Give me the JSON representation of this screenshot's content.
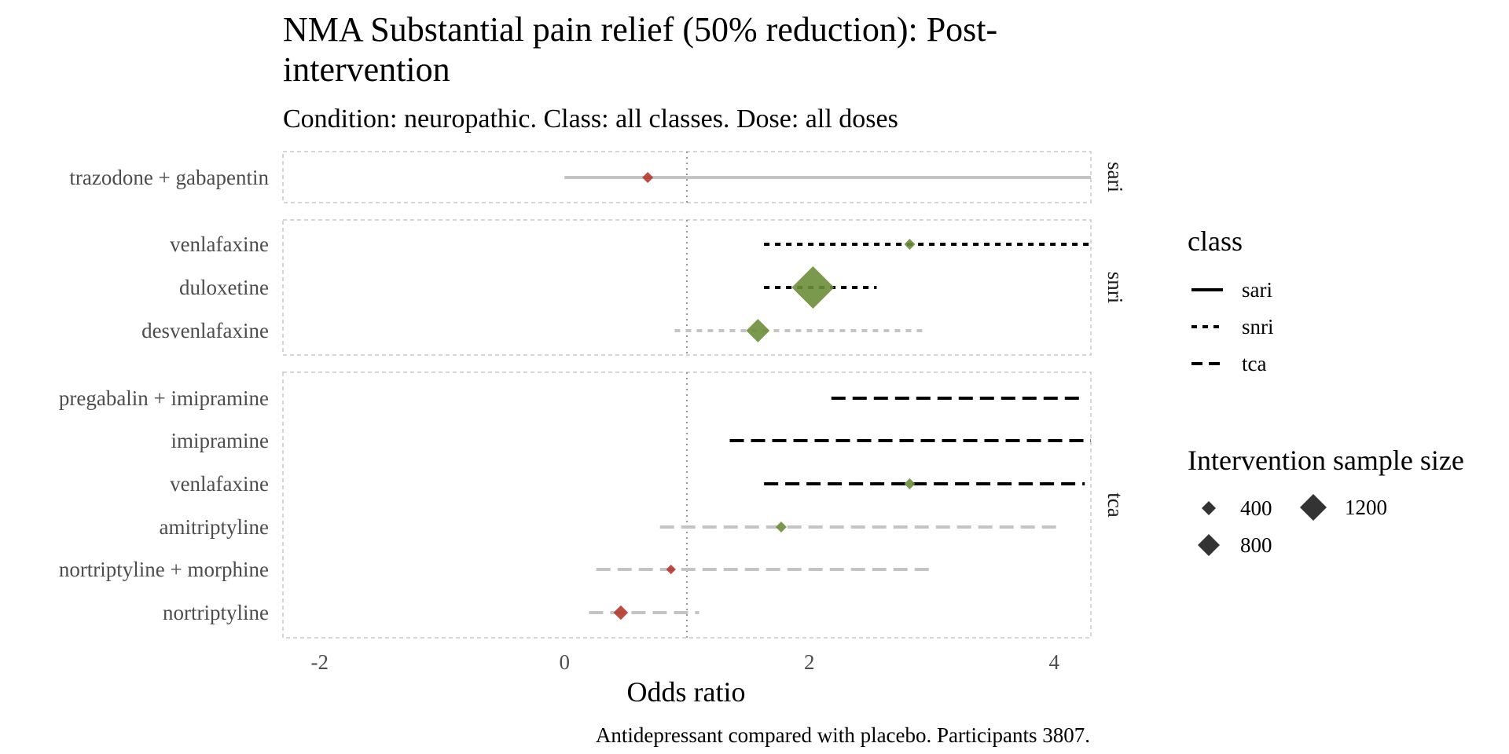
{
  "chart_data": {
    "type": "forest",
    "title_lines": [
      "NMA Substantial pain relief (50% reduction): Post-",
      "intervention"
    ],
    "subtitle": "Condition: neuropathic. Class: all classes. Dose: all doses",
    "xlabel": "Odds ratio",
    "caption": "Antidepressant compared with placebo. Participants 3807.",
    "xlim": [
      -2.3,
      4.3
    ],
    "x_ticks": [
      -2,
      0,
      2,
      4
    ],
    "tick_labels": [
      "-2",
      "0",
      "2",
      "4"
    ],
    "reference_line": 1,
    "colors": {
      "significant": "#6b8e3a",
      "not_significant_point": "#b5382e",
      "significant_line": "#000000",
      "not_significant_line": "#c4c4c4",
      "panel_border": "#c8c8c8",
      "reference": "#999999"
    },
    "panels": [
      {
        "class": "sari",
        "rows": [
          {
            "label": "trazodone + gabapentin",
            "estimate": 0.68,
            "lower": 0.0,
            "upper": 4.3,
            "n": 60,
            "significant": false
          }
        ]
      },
      {
        "class": "snri",
        "rows": [
          {
            "label": "venlafaxine",
            "estimate": 2.82,
            "lower": 1.63,
            "upper": 4.3,
            "n": 60,
            "significant": true
          },
          {
            "label": "duloxetine",
            "estimate": 2.03,
            "lower": 1.63,
            "upper": 2.55,
            "n": 1600,
            "significant": true
          },
          {
            "label": "desvenlafaxine",
            "estimate": 1.58,
            "lower": 0.9,
            "upper": 2.95,
            "n": 420,
            "significant": false
          }
        ]
      },
      {
        "class": "tca",
        "rows": [
          {
            "label": "pregabalin + imipramine",
            "estimate": null,
            "lower": 2.18,
            "upper": 4.25,
            "n": 0,
            "significant": true
          },
          {
            "label": "imipramine",
            "estimate": null,
            "lower": 1.35,
            "upper": 4.3,
            "n": 0,
            "significant": true
          },
          {
            "label": "venlafaxine",
            "estimate": 2.82,
            "lower": 1.63,
            "upper": 4.25,
            "n": 60,
            "significant": true
          },
          {
            "label": "amitriptyline",
            "estimate": 1.77,
            "lower": 0.78,
            "upper": 4.05,
            "n": 60,
            "significant": false
          },
          {
            "label": "nortriptyline + morphine",
            "estimate": 0.87,
            "lower": 0.26,
            "upper": 2.98,
            "n": 40,
            "significant": false
          },
          {
            "label": "nortriptyline",
            "estimate": 0.46,
            "lower": 0.2,
            "upper": 1.1,
            "n": 130,
            "significant": false
          }
        ]
      }
    ],
    "legend_class": {
      "title": "class",
      "items": [
        {
          "label": "sari",
          "linetype": "solid"
        },
        {
          "label": "snri",
          "linetype": "dotted"
        },
        {
          "label": "tca",
          "linetype": "dashed"
        }
      ]
    },
    "legend_size": {
      "title": "Intervention sample size",
      "items": [
        {
          "label": "400",
          "n": 400
        },
        {
          "label": "1200",
          "n": 1200
        },
        {
          "label": "800",
          "n": 800
        }
      ]
    }
  }
}
